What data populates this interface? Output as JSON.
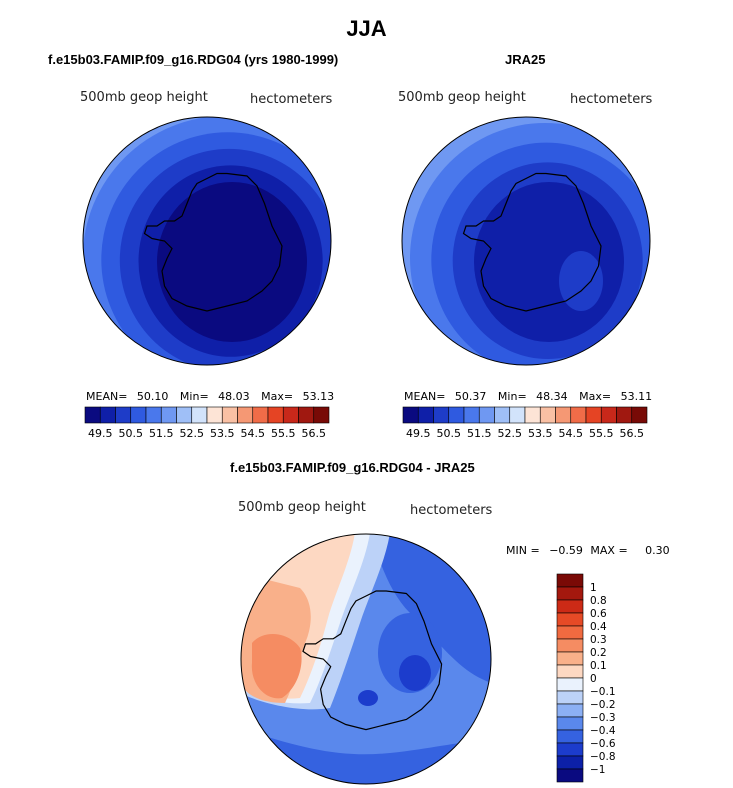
{
  "main_title": "JJA",
  "chart_data": [
    {
      "type": "heatmap",
      "projection": "south-polar-stereographic",
      "title": "f.e15b03.FAMIP.f09_g16.RDG04 (yrs 1980-1999)",
      "field_label": "500mb geop height",
      "units": "hectometers",
      "stats": {
        "mean_label": "MEAN=",
        "mean": "50.10",
        "min_label": "Min=",
        "min": "48.03",
        "max_label": "Max=",
        "max": "53.13"
      },
      "colorbar_ticks": [
        "49.5",
        "50.5",
        "51.5",
        "52.5",
        "53.5",
        "54.5",
        "55.5",
        "56.5"
      ],
      "colorbar_colors": [
        "#0a0a80",
        "#0f1fa8",
        "#1e3cc8",
        "#2f5ae0",
        "#4a78ec",
        "#6f98f2",
        "#9fbff7",
        "#d2e3fb",
        "#fde4d6",
        "#f9c0a4",
        "#f59874",
        "#f06c48",
        "#e54424",
        "#c8281a",
        "#a01810",
        "#780a06"
      ],
      "contour_levels": [
        {
          "value": "52.5",
          "color": "#d2e3fb"
        },
        {
          "value": "52.0",
          "color": "#9fbff7"
        },
        {
          "value": "51.5",
          "color": "#6f98f2"
        },
        {
          "value": "51.0",
          "color": "#4a78ec"
        },
        {
          "value": "50.5",
          "color": "#2f5ae0"
        },
        {
          "value": "50.0",
          "color": "#1e3cc8"
        },
        {
          "value": "49.5",
          "color": "#0f1fa8"
        },
        {
          "value": "49.0",
          "color": "#0a0a80"
        }
      ]
    },
    {
      "type": "heatmap",
      "projection": "south-polar-stereographic",
      "title": "JRA25",
      "field_label": "500mb geop height",
      "units": "hectometers",
      "stats": {
        "mean_label": "MEAN=",
        "mean": "50.37",
        "min_label": "Min=",
        "min": "48.34",
        "max_label": "Max=",
        "max": "53.11"
      },
      "colorbar_ticks": [
        "49.5",
        "50.5",
        "51.5",
        "52.5",
        "53.5",
        "54.5",
        "55.5",
        "56.5"
      ],
      "colorbar_colors": [
        "#0a0a80",
        "#0f1fa8",
        "#1e3cc8",
        "#2f5ae0",
        "#4a78ec",
        "#6f98f2",
        "#9fbff7",
        "#d2e3fb",
        "#fde4d6",
        "#f9c0a4",
        "#f59874",
        "#f06c48",
        "#e54424",
        "#c8281a",
        "#a01810",
        "#780a06"
      ],
      "contour_levels": [
        {
          "value": "52.5",
          "color": "#d2e3fb"
        },
        {
          "value": "52.0",
          "color": "#9fbff7"
        },
        {
          "value": "51.5",
          "color": "#6f98f2"
        },
        {
          "value": "51.0",
          "color": "#4a78ec"
        },
        {
          "value": "50.5",
          "color": "#2f5ae0"
        },
        {
          "value": "50.0",
          "color": "#1e3cc8"
        },
        {
          "value": "49.5",
          "color": "#0f1fa8"
        }
      ]
    },
    {
      "type": "heatmap",
      "projection": "south-polar-stereographic",
      "title": "f.e15b03.FAMIP.f09_g16.RDG04 - JRA25",
      "field_label": "500mb geop height",
      "units": "hectometers",
      "stats": {
        "min_label": "MIN =",
        "min": "−0.59",
        "max_label": "MAX =",
        "max": "0.30"
      },
      "colorbar_ticks": [
        "1",
        "0.8",
        "0.6",
        "0.4",
        "0.3",
        "0.2",
        "0.1",
        "0",
        "−0.1",
        "−0.2",
        "−0.3",
        "−0.4",
        "−0.6",
        "−0.8",
        "−1"
      ],
      "colorbar_colors": [
        "#7a0a06",
        "#a4180e",
        "#cc2a16",
        "#e64a26",
        "#f06a40",
        "#f58c62",
        "#f9b08a",
        "#fdd8c2",
        "#eaf2fd",
        "#bcd2f8",
        "#8cb0f4",
        "#5a88ec",
        "#3562e0",
        "#1c3ccc",
        "#0c20a8",
        "#0a0a80"
      ]
    }
  ]
}
